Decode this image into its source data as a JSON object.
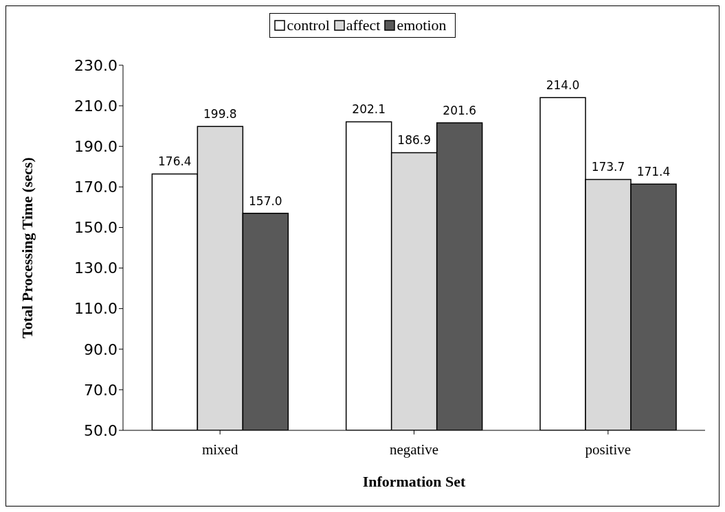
{
  "chart_data": {
    "type": "bar",
    "xlabel": "Information Set",
    "ylabel": "Total Processing Time (secs)",
    "categories": [
      "mixed",
      "negative",
      "positive"
    ],
    "series": [
      {
        "name": "control",
        "color": "#ffffff",
        "values": [
          176.4,
          202.1,
          214.0
        ],
        "value_labels": [
          "176.4",
          "202.1",
          "214.0"
        ]
      },
      {
        "name": "affect",
        "color": "#d9d9d9",
        "values": [
          199.8,
          186.9,
          173.7
        ],
        "value_labels": [
          "199.8",
          "186.9",
          "173.7"
        ]
      },
      {
        "name": "emotion",
        "color": "#595959",
        "values": [
          157.0,
          201.6,
          171.4
        ],
        "value_labels": [
          "157.0",
          "201.6",
          "171.4"
        ]
      }
    ],
    "ylim": [
      50,
      230
    ],
    "yticks": [
      {
        "value": 50,
        "label": "50.0"
      },
      {
        "value": 70,
        "label": "70.0"
      },
      {
        "value": 90,
        "label": "90.0"
      },
      {
        "value": 110,
        "label": "110.0"
      },
      {
        "value": 130,
        "label": "130.0"
      },
      {
        "value": 150,
        "label": "150.0"
      },
      {
        "value": 170,
        "label": "170.0"
      },
      {
        "value": 190,
        "label": "190.0"
      },
      {
        "value": 210,
        "label": "210.0"
      },
      {
        "value": 230,
        "label": "230.0"
      }
    ],
    "grid": false,
    "legend": "top"
  }
}
